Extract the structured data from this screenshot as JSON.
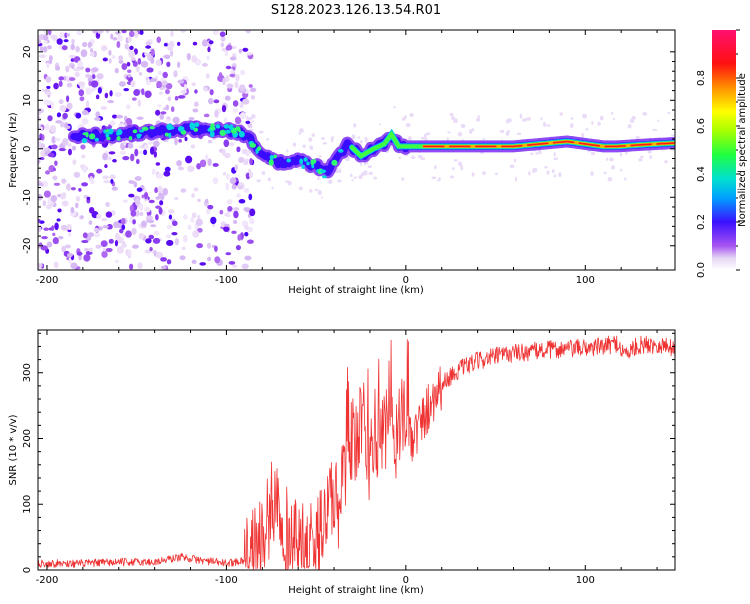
{
  "page": {
    "title": "S128.2023.126.13.54.R01"
  },
  "chart_data": [
    {
      "type": "heatmap",
      "title": "",
      "xlabel": "Height of straight line (km)",
      "ylabel": "Frequency (Hz)",
      "xlim": [
        -205,
        150
      ],
      "ylim": [
        -25,
        24.5
      ],
      "x_ticks": [
        "-200",
        "-100",
        "0",
        "100"
      ],
      "y_ticks": [
        "-20",
        "-10",
        "0",
        "10",
        "20"
      ],
      "colorbar": {
        "label": "Normalized spectral amplitude",
        "range": [
          0,
          1
        ],
        "ticks": [
          "0.0",
          "0.2",
          "0.4",
          "0.6",
          "0.8"
        ]
      },
      "ridge": [
        {
          "x": -185,
          "y": 2.5
        },
        {
          "x": -160,
          "y": 3.0
        },
        {
          "x": -140,
          "y": 3.5
        },
        {
          "x": -120,
          "y": 4.0
        },
        {
          "x": -100,
          "y": 4.0
        },
        {
          "x": -90,
          "y": 3.0
        },
        {
          "x": -80,
          "y": -1.0
        },
        {
          "x": -70,
          "y": -3.0
        },
        {
          "x": -60,
          "y": -2.5
        },
        {
          "x": -50,
          "y": -3.5
        },
        {
          "x": -45,
          "y": -5.0
        },
        {
          "x": -38,
          "y": -1.5
        },
        {
          "x": -32,
          "y": 1.0
        },
        {
          "x": -25,
          "y": -1.5
        },
        {
          "x": -18,
          "y": 0.0
        },
        {
          "x": -12,
          "y": 1.0
        },
        {
          "x": -8,
          "y": 3.0
        },
        {
          "x": -4,
          "y": 0.5
        },
        {
          "x": 5,
          "y": 0.5
        },
        {
          "x": 30,
          "y": 0.5
        },
        {
          "x": 60,
          "y": 0.5
        },
        {
          "x": 90,
          "y": 1.5
        },
        {
          "x": 110,
          "y": 0.5
        },
        {
          "x": 118,
          "y": 0.5
        },
        {
          "x": 130,
          "y": 0.8
        },
        {
          "x": 150,
          "y": 1.2
        }
      ]
    },
    {
      "type": "line",
      "title": "",
      "xlabel": "Height of straight line (km)",
      "ylabel": "SNR (10 * v/v)",
      "xlim": [
        -205,
        150
      ],
      "ylim": [
        0,
        365
      ],
      "x_ticks": [
        "-200",
        "-100",
        "0",
        "100"
      ],
      "y_ticks": [
        "0",
        "100",
        "200",
        "300"
      ],
      "series": [
        {
          "color": "#ef3333",
          "points": [
            {
              "x": -205,
              "y": 10
            },
            {
              "x": -180,
              "y": 10
            },
            {
              "x": -160,
              "y": 12
            },
            {
              "x": -140,
              "y": 12
            },
            {
              "x": -125,
              "y": 20
            },
            {
              "x": -115,
              "y": 15
            },
            {
              "x": -100,
              "y": 10
            },
            {
              "x": -90,
              "y": 15
            },
            {
              "x": -85,
              "y": 30
            },
            {
              "x": -80,
              "y": 50
            },
            {
              "x": -76,
              "y": 80
            },
            {
              "x": -73,
              "y": 120
            },
            {
              "x": -70,
              "y": 90
            },
            {
              "x": -66,
              "y": 55
            },
            {
              "x": -60,
              "y": 35
            },
            {
              "x": -55,
              "y": 30
            },
            {
              "x": -50,
              "y": 40
            },
            {
              "x": -45,
              "y": 80
            },
            {
              "x": -42,
              "y": 120
            },
            {
              "x": -38,
              "y": 90
            },
            {
              "x": -34,
              "y": 140
            },
            {
              "x": -30,
              "y": 200
            },
            {
              "x": -27,
              "y": 180
            },
            {
              "x": -24,
              "y": 240
            },
            {
              "x": -21,
              "y": 160
            },
            {
              "x": -18,
              "y": 210
            },
            {
              "x": -14,
              "y": 190
            },
            {
              "x": -10,
              "y": 220
            },
            {
              "x": -6,
              "y": 200
            },
            {
              "x": -3,
              "y": 230
            },
            {
              "x": 0,
              "y": 215
            },
            {
              "x": 4,
              "y": 200
            },
            {
              "x": 8,
              "y": 220
            },
            {
              "x": 12,
              "y": 245
            },
            {
              "x": 16,
              "y": 268
            },
            {
              "x": 20,
              "y": 282
            },
            {
              "x": 25,
              "y": 295
            },
            {
              "x": 30,
              "y": 305
            },
            {
              "x": 40,
              "y": 318
            },
            {
              "x": 50,
              "y": 325
            },
            {
              "x": 60,
              "y": 330
            },
            {
              "x": 70,
              "y": 332
            },
            {
              "x": 80,
              "y": 335
            },
            {
              "x": 90,
              "y": 336
            },
            {
              "x": 100,
              "y": 338
            },
            {
              "x": 110,
              "y": 340
            },
            {
              "x": 118,
              "y": 345
            },
            {
              "x": 122,
              "y": 328
            },
            {
              "x": 130,
              "y": 342
            },
            {
              "x": 140,
              "y": 343
            },
            {
              "x": 150,
              "y": 338
            }
          ]
        }
      ]
    }
  ]
}
